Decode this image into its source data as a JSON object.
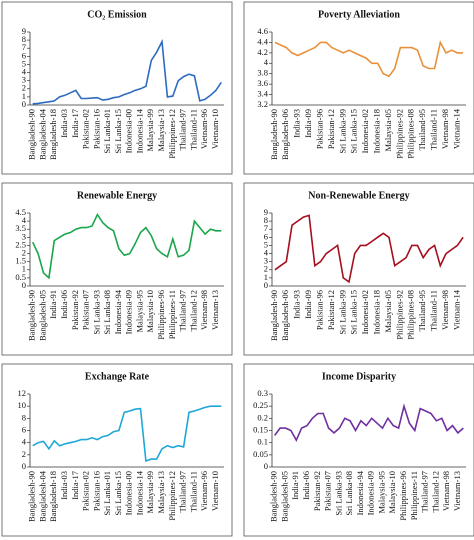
{
  "chart_data": [
    {
      "type": "line",
      "title": "CO₂ Emission",
      "color": "#2e6bbf",
      "categories": [
        "Bangladesh-90",
        null,
        "Bangladesh-04",
        null,
        "Bangladesh-18",
        null,
        "India-03",
        null,
        "India-17",
        null,
        "Pakistan-02",
        null,
        "Pakistan-16",
        null,
        "Sri Lanka-01",
        null,
        "Sri Lanka-15",
        null,
        "Indonesia-00",
        null,
        "Indonesia-14",
        null,
        "Malaysia-99",
        null,
        "Malaysia-13",
        null,
        "Philippines-12",
        null,
        "Thailand-97",
        null,
        "Thailand-11",
        null,
        "Vietnam-96",
        null,
        "Vietnam-10",
        null
      ],
      "values": [
        0.15,
        0.2,
        0.3,
        0.4,
        0.5,
        1.0,
        1.2,
        1.5,
        1.8,
        0.8,
        0.8,
        0.85,
        0.9,
        0.6,
        0.7,
        0.9,
        1.0,
        1.3,
        1.5,
        1.8,
        2.0,
        2.3,
        5.5,
        6.5,
        7.8,
        1.0,
        1.1,
        3.0,
        3.5,
        3.8,
        3.6,
        0.5,
        0.7,
        1.2,
        1.8,
        2.8
      ],
      "ylim": [
        0,
        9
      ],
      "yticks": [
        0,
        1,
        2,
        3,
        4,
        5,
        6,
        7,
        8,
        9
      ]
    },
    {
      "type": "line",
      "title": "Poverty Alleviation",
      "color": "#e8913a",
      "categories": [
        "Bangladesh-90",
        null,
        "Bangladesh-06",
        null,
        "India-93",
        null,
        "India-09",
        null,
        "Pakistan-96",
        null,
        "Pakistan-12",
        null,
        "Sri Lanka-99",
        null,
        "Sri Lanka-15",
        null,
        "Indonesia-02",
        null,
        "Indonesia-18",
        null,
        "Malaysia-05",
        null,
        "Philippines-92",
        null,
        "Philippines-08",
        null,
        "Thailand-95",
        null,
        "Thailand-11",
        null,
        "Vietnam-98",
        null,
        "Vietnam-14",
        null
      ],
      "values": [
        4.4,
        4.35,
        4.3,
        4.2,
        4.15,
        4.2,
        4.25,
        4.3,
        4.4,
        4.4,
        4.3,
        4.25,
        4.2,
        4.25,
        4.2,
        4.15,
        4.1,
        4.0,
        4.0,
        3.8,
        3.75,
        3.9,
        4.3,
        4.3,
        4.3,
        4.25,
        3.95,
        3.9,
        3.9,
        4.4,
        4.2,
        4.25,
        4.2,
        4.2
      ],
      "ylim": [
        3.2,
        4.6
      ],
      "yticks": [
        3.2,
        3.4,
        3.6,
        3.8,
        4,
        4.2,
        4.4,
        4.6
      ]
    },
    {
      "type": "line",
      "title": "Renewable Energy",
      "color": "#1aa64a",
      "categories": [
        "Bangladesh-90",
        null,
        "Bangladesh-05",
        null,
        "India-91",
        null,
        "India-06",
        null,
        "Pakistan-92",
        null,
        "Pakistan-07",
        null,
        "Sri Lanka-93",
        null,
        "Sri Lanka-08",
        null,
        "Indonesia-94",
        null,
        "Indonesia-09",
        null,
        "Malaysia-95",
        null,
        "Malaysia-10",
        null,
        "Philippines-96",
        null,
        "Philippines-11",
        null,
        "Thailand-97",
        null,
        "Thailand-12",
        null,
        "Vietnam-98",
        null,
        "Vietnam-13",
        null
      ],
      "values": [
        2.7,
        2.0,
        0.8,
        0.5,
        2.8,
        3.0,
        3.2,
        3.3,
        3.5,
        3.6,
        3.6,
        3.7,
        4.4,
        3.9,
        3.6,
        3.4,
        2.3,
        1.9,
        2.0,
        2.6,
        3.3,
        3.6,
        3.1,
        2.3,
        2.0,
        1.8,
        2.9,
        1.8,
        1.9,
        2.2,
        4.0,
        3.6,
        3.2,
        3.5,
        3.4,
        3.4
      ],
      "ylim": [
        0,
        4.5
      ],
      "yticks": [
        0,
        0.5,
        1,
        1.5,
        2,
        2.5,
        3,
        3.5,
        4,
        4.5
      ]
    },
    {
      "type": "line",
      "title": "Non-Renewable Energy",
      "color": "#a50f1f",
      "categories": [
        "Bangladesh-90",
        null,
        "Bangladesh-06",
        null,
        "India-93",
        null,
        "India-09",
        null,
        "Pakistan-96",
        null,
        "Pakistan-12",
        null,
        "Sri Lanka-99",
        null,
        "Sri Lanka-15",
        null,
        "Indonesia-02",
        null,
        "Indonesia-18",
        null,
        "Malaysia-05",
        null,
        "Philippines-92",
        null,
        "Philippines-08",
        null,
        "Thailand-95",
        null,
        "Thailand-11",
        null,
        "Vietnam-98",
        null,
        "Vietnam-14",
        null
      ],
      "values": [
        2.0,
        2.5,
        3.0,
        7.5,
        8.0,
        8.5,
        8.7,
        2.5,
        3.0,
        4.0,
        4.5,
        5.0,
        1.0,
        0.5,
        4.0,
        5.0,
        5.0,
        5.5,
        6.0,
        6.5,
        6.0,
        2.5,
        3.0,
        3.5,
        5.0,
        5.0,
        3.5,
        4.5,
        5.0,
        2.5,
        4.0,
        4.5,
        5.0,
        6.0
      ],
      "ylim": [
        0,
        9
      ],
      "yticks": [
        0,
        1,
        2,
        3,
        4,
        5,
        6,
        7,
        8,
        9
      ]
    },
    {
      "type": "line",
      "title": "Exchange Rate",
      "color": "#1ea7d8",
      "categories": [
        "Bangladesh-90",
        null,
        "Bangladesh-04",
        null,
        "Bangladesh-18",
        null,
        "India-03",
        null,
        "India-17",
        null,
        "Pakistan-02",
        null,
        "Pakistan-16",
        null,
        "Sri Lanka-01",
        null,
        "Sri Lanka-15",
        null,
        "Indonesia-00",
        null,
        "Indonesia-14",
        null,
        "Malaysia-99",
        null,
        "Malaysia-13",
        null,
        "Philippines-12",
        null,
        "Thailand-97",
        null,
        "Thailand-11",
        null,
        "Vietnam-96",
        null,
        "Vietnam-10",
        null
      ],
      "values": [
        3.5,
        4.0,
        4.2,
        3.0,
        4.3,
        3.5,
        3.8,
        4.0,
        4.2,
        4.5,
        4.5,
        4.8,
        4.5,
        5.0,
        5.2,
        5.8,
        6.0,
        9.0,
        9.2,
        9.5,
        9.6,
        1.0,
        1.3,
        1.3,
        3.0,
        3.5,
        3.2,
        3.5,
        3.3,
        9.0,
        9.2,
        9.5,
        9.8,
        10.0,
        10.0,
        10.0
      ],
      "ylim": [
        0,
        12
      ],
      "yticks": [
        0,
        2,
        4,
        6,
        8,
        10,
        12
      ]
    },
    {
      "type": "line",
      "title": "Income Disparity",
      "color": "#7030a0",
      "categories": [
        "Bangladesh-90",
        null,
        "Bangladesh-05",
        null,
        "India-91",
        null,
        "India-06",
        null,
        "Pakistan-92",
        null,
        "Pakistan-07",
        null,
        "Sri Lanka-93",
        null,
        "Sri Lanka-08",
        null,
        "Indonesia-94",
        null,
        "Indonesia-09",
        null,
        "Malaysia-95",
        null,
        "Malaysia-10",
        null,
        "Philippines-96",
        null,
        "Philippines-11",
        null,
        "Thailand-97",
        null,
        "Thailand-12",
        null,
        "Vietnam-98",
        null,
        "Vietnam-13",
        null
      ],
      "values": [
        0.13,
        0.16,
        0.16,
        0.15,
        0.11,
        0.16,
        0.17,
        0.2,
        0.22,
        0.22,
        0.16,
        0.14,
        0.16,
        0.2,
        0.19,
        0.15,
        0.19,
        0.17,
        0.2,
        0.18,
        0.16,
        0.2,
        0.17,
        0.16,
        0.25,
        0.18,
        0.15,
        0.24,
        0.23,
        0.22,
        0.19,
        0.2,
        0.15,
        0.17,
        0.14,
        0.16
      ],
      "ylim": [
        0,
        0.3
      ],
      "yticks": [
        0,
        0.05,
        0.1,
        0.15,
        0.2,
        0.25,
        0.3
      ]
    }
  ]
}
